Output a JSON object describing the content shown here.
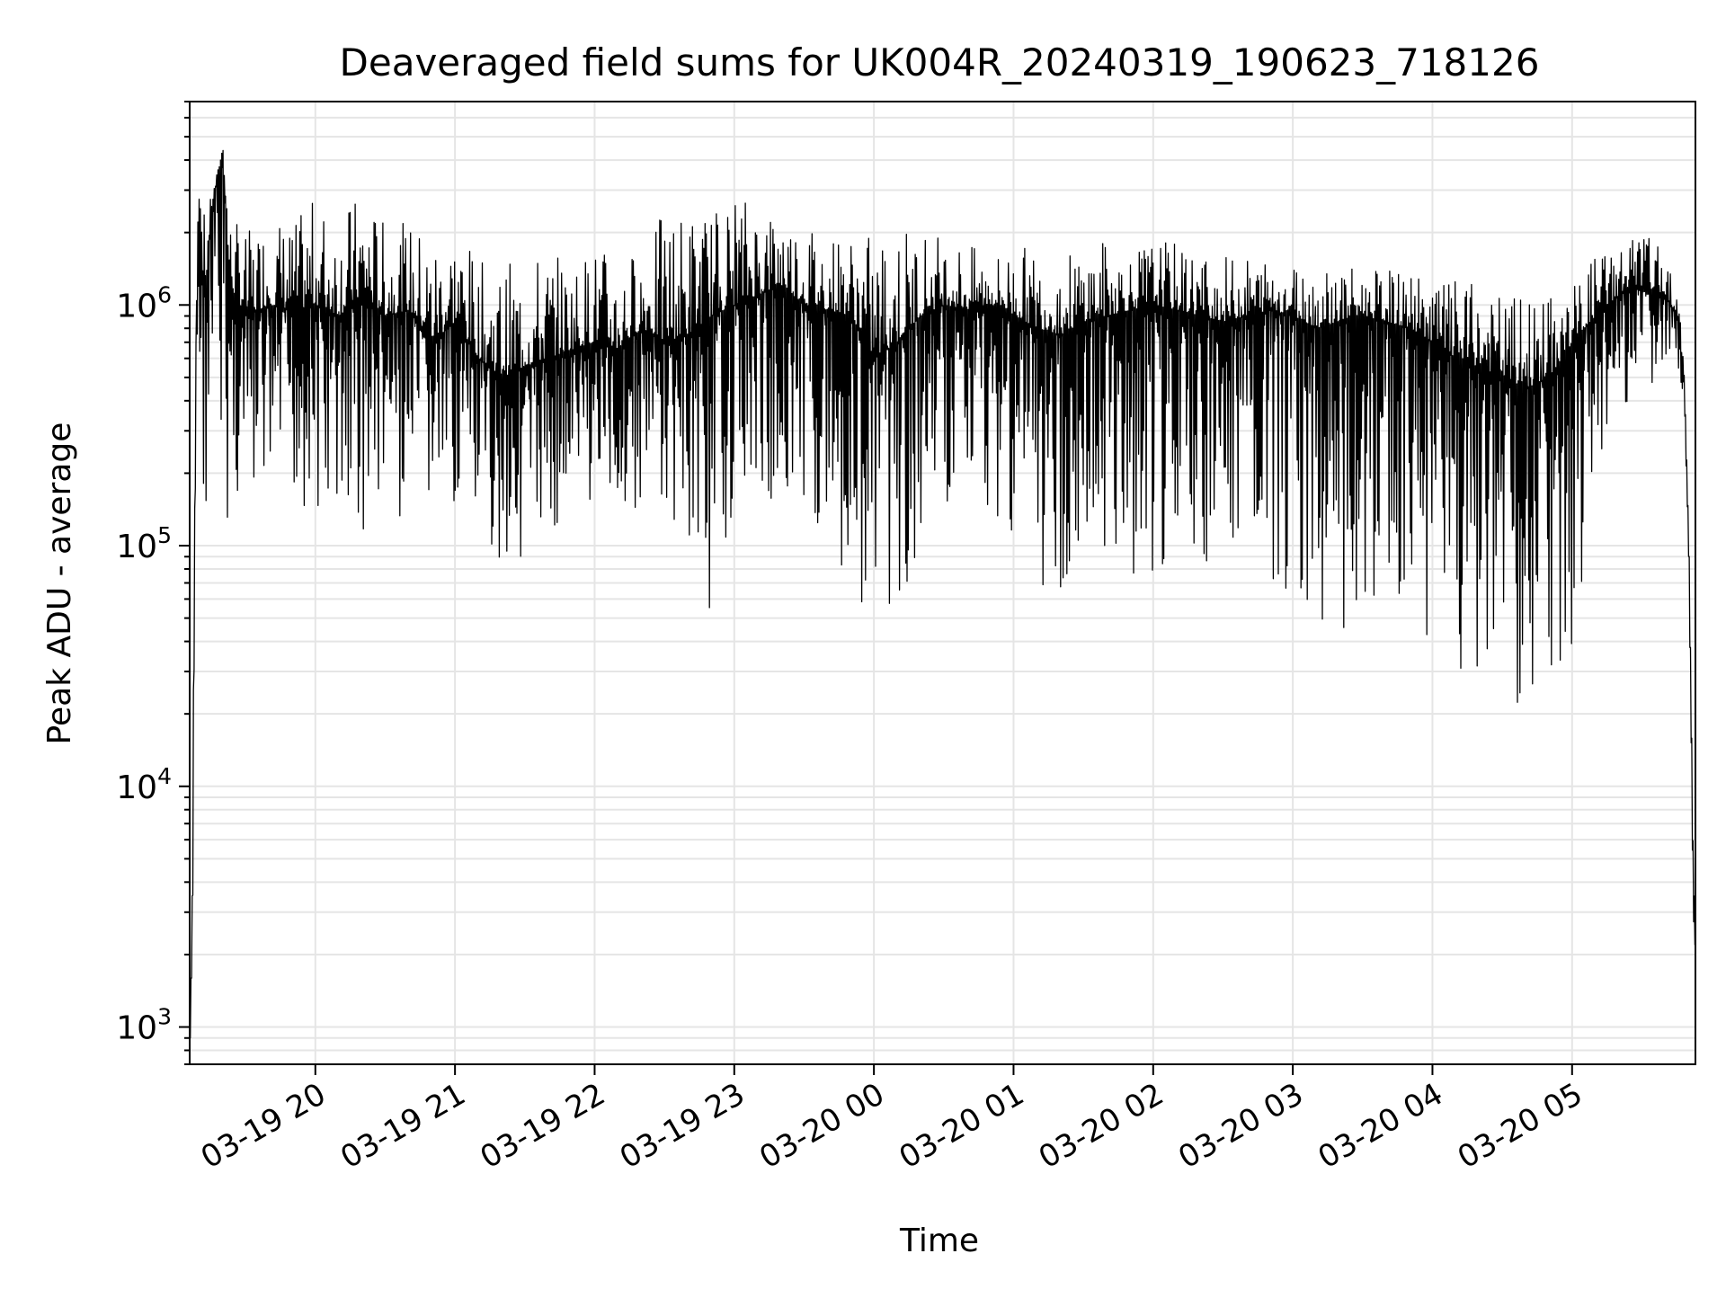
{
  "chart_data": {
    "type": "line",
    "title": "Deaveraged field sums for UK004R_20240319_190623_718126",
    "xlabel": "Time",
    "ylabel": "Peak ADU - average",
    "yscale": "log",
    "ylim": [
      700,
      7000000
    ],
    "xlim": [
      "2024-03-19 19:06",
      "2024-03-20 05:53"
    ],
    "grid": true,
    "line_color": "#000000",
    "grid_color": "#e5e5e5",
    "x_ticks": [
      {
        "t": "2024-03-19 20:00",
        "label": "03-19 20"
      },
      {
        "t": "2024-03-19 21:00",
        "label": "03-19 21"
      },
      {
        "t": "2024-03-19 22:00",
        "label": "03-19 22"
      },
      {
        "t": "2024-03-19 23:00",
        "label": "03-19 23"
      },
      {
        "t": "2024-03-20 00:00",
        "label": "03-20 00"
      },
      {
        "t": "2024-03-20 01:00",
        "label": "03-20 01"
      },
      {
        "t": "2024-03-20 02:00",
        "label": "03-20 02"
      },
      {
        "t": "2024-03-20 03:00",
        "label": "03-20 03"
      },
      {
        "t": "2024-03-20 04:00",
        "label": "03-20 04"
      },
      {
        "t": "2024-03-20 05:00",
        "label": "03-20 05"
      }
    ],
    "y_ticks": [
      {
        "value": 1000,
        "mantissa": "10",
        "exponent": "3"
      },
      {
        "value": 10000,
        "mantissa": "10",
        "exponent": "4"
      },
      {
        "value": 100000,
        "mantissa": "10",
        "exponent": "5"
      },
      {
        "value": 1000000,
        "mantissa": "10",
        "exponent": "6"
      }
    ],
    "series": [
      {
        "x": [
          "2024-03-19 19:06",
          "2024-03-19 19:07",
          "2024-03-19 19:08",
          "2024-03-19 19:09",
          "2024-03-19 19:10",
          "2024-03-19 19:12",
          "2024-03-19 19:15",
          "2024-03-19 19:20",
          "2024-03-19 19:23",
          "2024-03-19 19:30",
          "2024-03-19 19:40",
          "2024-03-19 19:50",
          "2024-03-19 20:00",
          "2024-03-19 20:10",
          "2024-03-19 20:20",
          "2024-03-19 20:30",
          "2024-03-19 20:40",
          "2024-03-19 20:50",
          "2024-03-19 21:00",
          "2024-03-19 21:10",
          "2024-03-19 21:20",
          "2024-03-19 21:30",
          "2024-03-19 21:40",
          "2024-03-19 21:50",
          "2024-03-19 22:00",
          "2024-03-19 22:10",
          "2024-03-19 22:20",
          "2024-03-19 22:30",
          "2024-03-19 22:40",
          "2024-03-19 22:50",
          "2024-03-19 23:00",
          "2024-03-19 23:10",
          "2024-03-19 23:20",
          "2024-03-19 23:30",
          "2024-03-19 23:40",
          "2024-03-19 23:50",
          "2024-03-20 00:00",
          "2024-03-20 00:10",
          "2024-03-20 00:20",
          "2024-03-20 00:30",
          "2024-03-20 00:40",
          "2024-03-20 00:50",
          "2024-03-20 01:00",
          "2024-03-20 01:10",
          "2024-03-20 01:20",
          "2024-03-20 01:30",
          "2024-03-20 01:40",
          "2024-03-20 01:50",
          "2024-03-20 02:00",
          "2024-03-20 02:10",
          "2024-03-20 02:20",
          "2024-03-20 02:30",
          "2024-03-20 02:40",
          "2024-03-20 02:50",
          "2024-03-20 03:00",
          "2024-03-20 03:10",
          "2024-03-20 03:20",
          "2024-03-20 03:30",
          "2024-03-20 03:40",
          "2024-03-20 03:50",
          "2024-03-20 04:00",
          "2024-03-20 04:10",
          "2024-03-20 04:20",
          "2024-03-20 04:30",
          "2024-03-20 04:40",
          "2024-03-20 04:50",
          "2024-03-20 05:00",
          "2024-03-20 05:10",
          "2024-03-20 05:20",
          "2024-03-20 05:30",
          "2024-03-20 05:40",
          "2024-03-20 05:45",
          "2024-03-20 05:48",
          "2024-03-20 05:50",
          "2024-03-20 05:51",
          "2024-03-20 05:52",
          "2024-03-20 05:53"
        ],
        "y": [
          900,
          2600,
          100000,
          2000000,
          3000000,
          1000000,
          2500000,
          4500000,
          1200000,
          900000,
          1000000,
          950000,
          1000000,
          900000,
          1100000,
          900000,
          950000,
          700000,
          850000,
          600000,
          500000,
          550000,
          600000,
          650000,
          700000,
          650000,
          800000,
          700000,
          750000,
          900000,
          1000000,
          1100000,
          1200000,
          1000000,
          950000,
          900000,
          600000,
          700000,
          900000,
          1000000,
          950000,
          1000000,
          900000,
          800000,
          750000,
          850000,
          900000,
          950000,
          1000000,
          950000,
          900000,
          850000,
          900000,
          950000,
          900000,
          800000,
          850000,
          900000,
          850000,
          800000,
          700000,
          600000,
          550000,
          500000,
          450000,
          500000,
          700000,
          900000,
          1100000,
          1200000,
          1100000,
          900000,
          500000,
          100000,
          20000,
          3000,
          2000
        ],
        "min_envelope": [
          900,
          2600,
          100000,
          300000,
          200000,
          150000,
          100000,
          80000,
          120000,
          150000,
          130000,
          140000,
          130000,
          120000,
          100000,
          130000,
          110000,
          130000,
          140000,
          100000,
          80000,
          90000,
          110000,
          130000,
          150000,
          120000,
          140000,
          130000,
          100000,
          50000,
          150000,
          160000,
          140000,
          150000,
          100000,
          60000,
          50000,
          55000,
          90000,
          150000,
          130000,
          140000,
          110000,
          70000,
          60000,
          80000,
          70000,
          80000,
          60000,
          70000,
          80000,
          60000,
          70000,
          55000,
          70000,
          50000,
          40000,
          50000,
          60000,
          50000,
          40000,
          30000,
          25000,
          20000,
          18000,
          25000,
          30000,
          200000,
          300000,
          400000,
          500000,
          600000,
          400000,
          100000,
          20000,
          3000,
          2000
        ],
        "max_envelope": [
          900,
          2600,
          150000,
          3000000,
          2800000,
          2500000,
          2800000,
          4500000,
          2500000,
          2000000,
          2500000,
          2200000,
          2800000,
          2500000,
          3000000,
          2200000,
          2200000,
          2000000,
          2200000,
          1500000,
          1500000,
          1600000,
          1700000,
          1500000,
          1800000,
          1600000,
          1800000,
          2500000,
          2600000,
          2500000,
          3000000,
          2800000,
          2500000,
          2300000,
          2000000,
          2000000,
          2000000,
          2200000,
          2100000,
          2000000,
          1800000,
          1600000,
          1800000,
          1700000,
          1600000,
          1800000,
          1900000,
          1700000,
          1900000,
          1800000,
          1700000,
          1600000,
          1600000,
          1600000,
          1550000,
          1500000,
          1500000,
          1400000,
          1400000,
          1350000,
          1300000,
          1250000,
          1200000,
          1100000,
          1100000,
          1100000,
          1200000,
          1700000,
          1900000,
          2100000,
          1600000,
          1300000,
          500000,
          100000,
          20000,
          5000,
          2000
        ]
      }
    ]
  }
}
